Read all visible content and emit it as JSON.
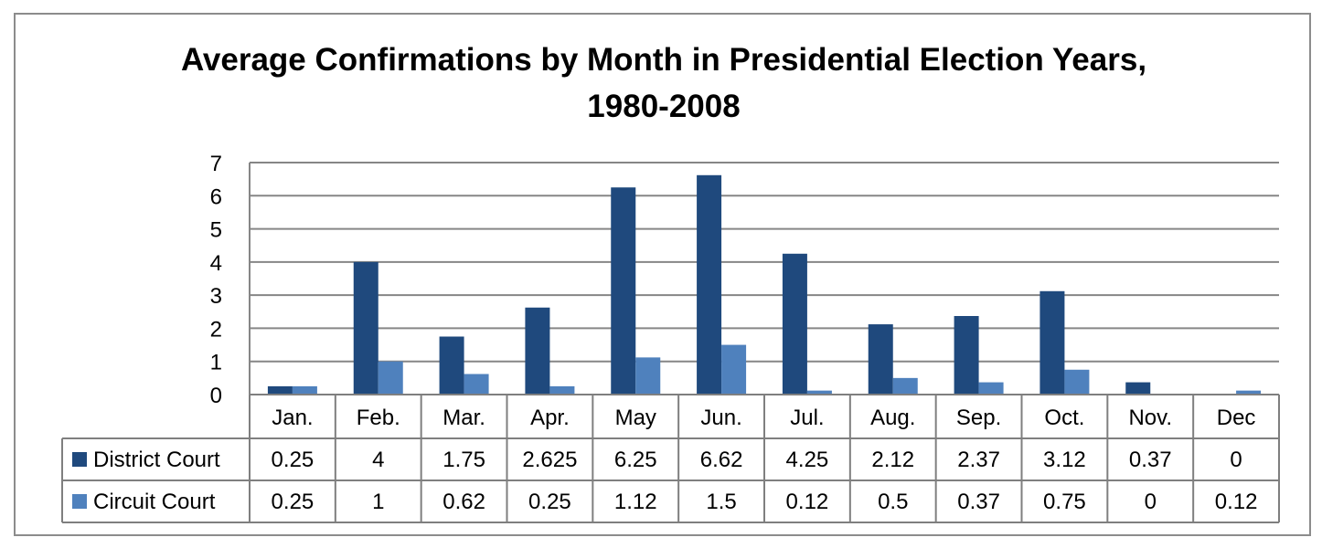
{
  "chart_data": {
    "type": "bar",
    "title_lines": [
      "Average Confirmations by Month in Presidential Election Years,",
      "1980-2008"
    ],
    "categories": [
      "Jan.",
      "Feb.",
      "Mar.",
      "Apr.",
      "May",
      "Jun.",
      "Jul.",
      "Aug.",
      "Sep.",
      "Oct.",
      "Nov.",
      "Dec"
    ],
    "series": [
      {
        "name": "District Court",
        "color": "#1f497d",
        "values": [
          0.25,
          4,
          1.75,
          2.625,
          6.25,
          6.62,
          4.25,
          2.12,
          2.37,
          3.12,
          0.37,
          0
        ],
        "labels": [
          "0.25",
          "4",
          "1.75",
          "2.625",
          "6.25",
          "6.62",
          "4.25",
          "2.12",
          "2.37",
          "3.12",
          "0.37",
          "0"
        ]
      },
      {
        "name": "Circuit Court",
        "color": "#4f81bd",
        "values": [
          0.25,
          1,
          0.62,
          0.25,
          1.12,
          1.5,
          0.12,
          0.5,
          0.37,
          0.75,
          0,
          0.12
        ],
        "labels": [
          "0.25",
          "1",
          "0.62",
          "0.25",
          "1.12",
          "1.5",
          "0.12",
          "0.5",
          "0.37",
          "0.75",
          "0",
          "0.12"
        ]
      }
    ],
    "ylim": [
      0,
      7
    ],
    "yticks": [
      "0",
      "1",
      "2",
      "3",
      "4",
      "5",
      "6",
      "7"
    ],
    "grid": true,
    "legend": "data-table"
  }
}
